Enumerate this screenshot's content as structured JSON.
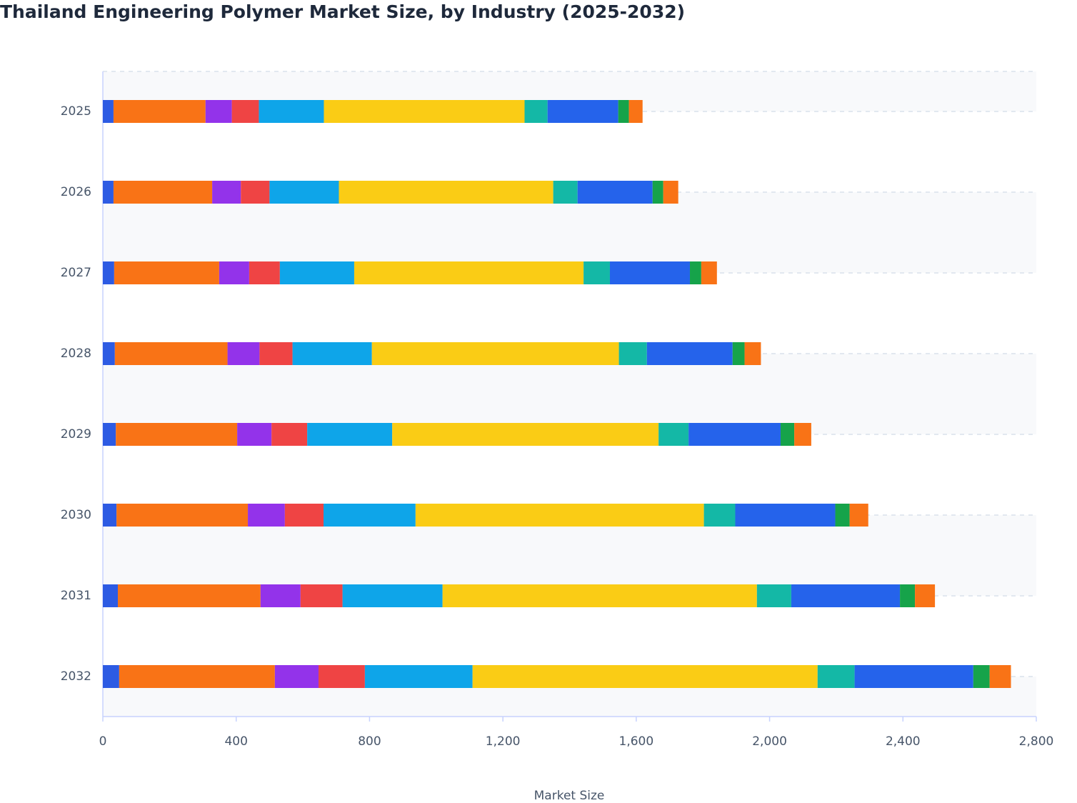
{
  "chart_data": {
    "type": "stacked-barh",
    "title": "Thailand Engineering Polymer Market Size, by Industry (2025-2032)",
    "x_label": "Market Size",
    "categories": [
      "2025",
      "2026",
      "2027",
      "2028",
      "2029",
      "2030",
      "2031",
      "2032"
    ],
    "series": [
      {
        "color": "#2d5be3",
        "values": [
          32,
          32,
          34,
          36,
          39,
          41,
          45,
          49
        ]
      },
      {
        "color": "#f97316",
        "values": [
          276,
          296,
          315,
          338,
          364,
          394,
          428,
          467
        ]
      },
      {
        "color": "#9333ea",
        "values": [
          79,
          86,
          90,
          96,
          103,
          111,
          120,
          131
        ]
      },
      {
        "color": "#ef4444",
        "values": [
          81,
          86,
          92,
          99,
          107,
          116,
          126,
          139
        ]
      },
      {
        "color": "#0ea5e9",
        "values": [
          195,
          208,
          223,
          238,
          255,
          276,
          300,
          323
        ]
      },
      {
        "color": "#facc15",
        "values": [
          602,
          643,
          688,
          741,
          799,
          865,
          943,
          1035
        ]
      },
      {
        "color": "#14b8a6",
        "values": [
          69,
          73,
          79,
          84,
          90,
          94,
          103,
          111
        ]
      },
      {
        "color": "#2563eb",
        "values": [
          212,
          225,
          240,
          257,
          276,
          300,
          326,
          356
        ]
      },
      {
        "color": "#16a34a",
        "values": [
          32,
          32,
          34,
          36,
          41,
          43,
          45,
          49
        ]
      },
      {
        "color": "#f97316",
        "values": [
          41,
          45,
          47,
          49,
          51,
          56,
          60,
          64
        ]
      }
    ],
    "xlim": [
      0,
      2800
    ],
    "xticks": [
      0,
      400,
      800,
      {
        "value": 1200,
        "label": "1,200"
      },
      {
        "value": 1600,
        "label": "1,600"
      },
      {
        "value": 2000,
        "label": "2,000"
      },
      {
        "value": 2400,
        "label": "2,400"
      },
      {
        "value": 2800,
        "label": "2,800"
      }
    ],
    "grid": true
  }
}
